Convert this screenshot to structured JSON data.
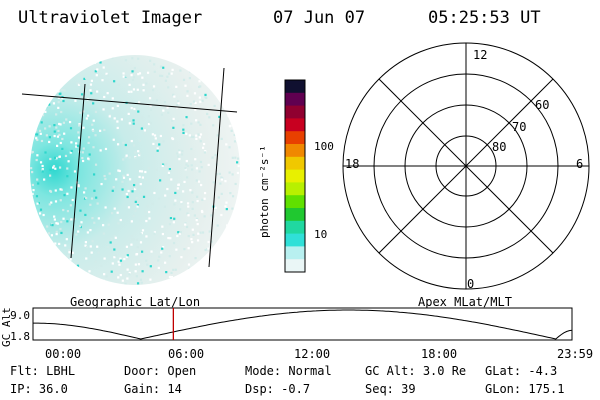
{
  "header": {
    "instrument": "Ultraviolet Imager",
    "date": "07 Jun 07",
    "time": "05:25:53 UT"
  },
  "colorbar": {
    "unit_label": "photon cm⁻²s⁻¹",
    "ticks": [
      "100",
      "10"
    ],
    "colors": [
      "#101030",
      "#600050",
      "#900030",
      "#c80020",
      "#e84000",
      "#f08800",
      "#f0c800",
      "#e8f000",
      "#b8f000",
      "#60e000",
      "#20c830",
      "#20d8a0",
      "#30e0d8",
      "#b8f0f0",
      "#eaf6f6"
    ]
  },
  "polar": {
    "mlt_labels": {
      "top": "12",
      "left": "18",
      "right": "6",
      "bottom": "0"
    },
    "lat_labels": [
      "60",
      "70",
      "80"
    ]
  },
  "orbit": {
    "left_caption": "Geographic Lat/Lon",
    "right_caption": "Apex MLat/MLT",
    "axis_label": "GC Alt",
    "y_max": "9.0",
    "y_min": "1.8",
    "time_ticks": [
      "00:00",
      "06:00",
      "12:00",
      "18:00",
      "23:59"
    ],
    "current_time_fraction": 0.227,
    "marker_color": "#c00000"
  },
  "info": {
    "row1": [
      {
        "label": "Flt:",
        "value": "LBHL"
      },
      {
        "label": "Door:",
        "value": "Open"
      },
      {
        "label": "Mode:",
        "value": "Normal"
      },
      {
        "label": "GC Alt:",
        "value": "3.0 Re"
      },
      {
        "label": "GLat:",
        "value": "-4.3"
      }
    ],
    "row2": [
      {
        "label": "IP:",
        "value": "36.0"
      },
      {
        "label": "Gain:",
        "value": "14"
      },
      {
        "label": "Dsp:",
        "value": "-0.7"
      },
      {
        "label": "Seq:",
        "value": "39"
      },
      {
        "label": "GLon:",
        "value": "175.1"
      }
    ]
  }
}
